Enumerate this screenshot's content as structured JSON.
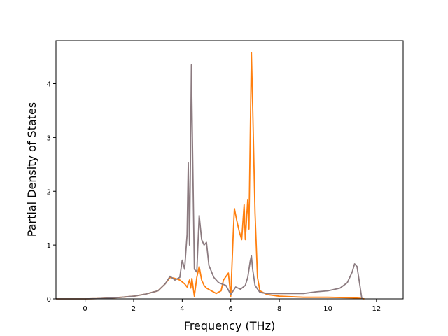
{
  "chart_data": {
    "type": "line",
    "title": "",
    "xlabel": "Frequency (THz)",
    "ylabel": "Partial Density of States",
    "xlim": [
      -1.2,
      13.1
    ],
    "ylim": [
      0,
      4.8
    ],
    "xticks": [
      0,
      2,
      4,
      6,
      8,
      10,
      12
    ],
    "yticks": [
      0,
      1,
      2,
      3,
      4
    ],
    "grid": false,
    "legend": "none",
    "series": [
      {
        "color": "#ff7f0e",
        "points": [
          [
            -1.2,
            0
          ],
          [
            0.0,
            0.0
          ],
          [
            0.5,
            0.005
          ],
          [
            1.0,
            0.015
          ],
          [
            1.5,
            0.03
          ],
          [
            2.0,
            0.05
          ],
          [
            2.5,
            0.09
          ],
          [
            3.0,
            0.15
          ],
          [
            3.3,
            0.28
          ],
          [
            3.5,
            0.4
          ],
          [
            3.7,
            0.38
          ],
          [
            3.9,
            0.35
          ],
          [
            4.1,
            0.28
          ],
          [
            4.2,
            0.22
          ],
          [
            4.3,
            0.35
          ],
          [
            4.35,
            0.2
          ],
          [
            4.4,
            0.38
          ],
          [
            4.5,
            0.05
          ],
          [
            4.6,
            0.4
          ],
          [
            4.7,
            0.6
          ],
          [
            4.8,
            0.35
          ],
          [
            4.9,
            0.25
          ],
          [
            5.0,
            0.2
          ],
          [
            5.2,
            0.15
          ],
          [
            5.4,
            0.1
          ],
          [
            5.6,
            0.15
          ],
          [
            5.7,
            0.35
          ],
          [
            5.9,
            0.48
          ],
          [
            6.0,
            0.05
          ],
          [
            6.1,
            1.2
          ],
          [
            6.15,
            1.68
          ],
          [
            6.25,
            1.45
          ],
          [
            6.35,
            1.25
          ],
          [
            6.45,
            1.1
          ],
          [
            6.55,
            1.75
          ],
          [
            6.6,
            1.1
          ],
          [
            6.7,
            1.85
          ],
          [
            6.75,
            1.3
          ],
          [
            6.8,
            3.0
          ],
          [
            6.85,
            4.58
          ],
          [
            6.9,
            3.6
          ],
          [
            7.0,
            1.6
          ],
          [
            7.1,
            0.4
          ],
          [
            7.2,
            0.15
          ],
          [
            7.5,
            0.08
          ],
          [
            8.0,
            0.05
          ],
          [
            9.0,
            0.03
          ],
          [
            10.0,
            0.03
          ],
          [
            11.0,
            0.02
          ],
          [
            11.3,
            0.01
          ],
          [
            11.5,
            0.0
          ]
        ]
      },
      {
        "color": "#8c7b80",
        "points": [
          [
            -1.2,
            0
          ],
          [
            0.0,
            0.0
          ],
          [
            0.5,
            0.005
          ],
          [
            1.0,
            0.015
          ],
          [
            1.5,
            0.03
          ],
          [
            2.0,
            0.05
          ],
          [
            2.5,
            0.09
          ],
          [
            3.0,
            0.15
          ],
          [
            3.3,
            0.28
          ],
          [
            3.5,
            0.42
          ],
          [
            3.7,
            0.35
          ],
          [
            3.9,
            0.4
          ],
          [
            4.0,
            0.72
          ],
          [
            4.1,
            0.55
          ],
          [
            4.2,
            1.2
          ],
          [
            4.25,
            2.53
          ],
          [
            4.3,
            1.0
          ],
          [
            4.35,
            3.0
          ],
          [
            4.38,
            4.35
          ],
          [
            4.42,
            3.0
          ],
          [
            4.5,
            0.55
          ],
          [
            4.6,
            0.5
          ],
          [
            4.7,
            1.55
          ],
          [
            4.8,
            1.1
          ],
          [
            4.9,
            1.0
          ],
          [
            5.0,
            1.05
          ],
          [
            5.1,
            0.62
          ],
          [
            5.3,
            0.4
          ],
          [
            5.5,
            0.3
          ],
          [
            5.8,
            0.25
          ],
          [
            6.0,
            0.08
          ],
          [
            6.2,
            0.22
          ],
          [
            6.4,
            0.18
          ],
          [
            6.6,
            0.25
          ],
          [
            6.7,
            0.4
          ],
          [
            6.8,
            0.7
          ],
          [
            6.85,
            0.8
          ],
          [
            6.9,
            0.55
          ],
          [
            7.0,
            0.25
          ],
          [
            7.2,
            0.12
          ],
          [
            7.5,
            0.1
          ],
          [
            8.0,
            0.1
          ],
          [
            9.0,
            0.1
          ],
          [
            9.5,
            0.13
          ],
          [
            10.0,
            0.15
          ],
          [
            10.5,
            0.2
          ],
          [
            10.8,
            0.3
          ],
          [
            11.0,
            0.5
          ],
          [
            11.1,
            0.65
          ],
          [
            11.2,
            0.6
          ],
          [
            11.3,
            0.3
          ],
          [
            11.4,
            0.0
          ]
        ]
      }
    ]
  }
}
